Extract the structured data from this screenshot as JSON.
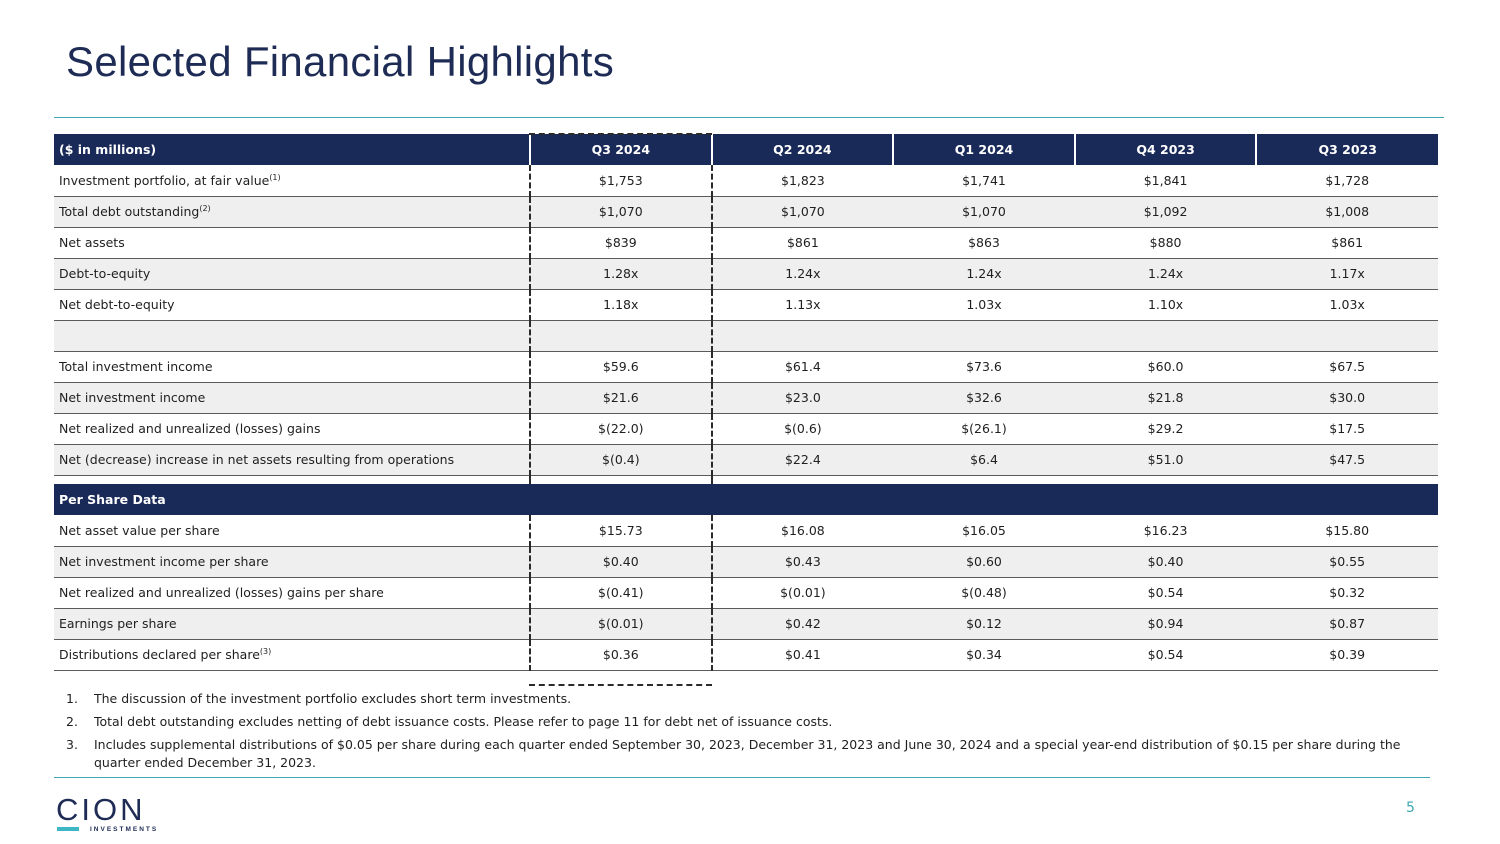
{
  "title": "Selected Financial Highlights",
  "table": {
    "header_label": "($ in millions)",
    "columns": [
      "Q3 2024",
      "Q2 2024",
      "Q1 2024",
      "Q4 2023",
      "Q3 2023"
    ],
    "rows_a": [
      {
        "label": "Investment portfolio, at fair value",
        "sup": "(1)",
        "values": [
          "$1,753",
          "$1,823",
          "$1,741",
          "$1,841",
          "$1,728"
        ]
      },
      {
        "label": "Total debt outstanding",
        "sup": "(2)",
        "values": [
          "$1,070",
          "$1,070",
          "$1,070",
          "$1,092",
          "$1,008"
        ]
      },
      {
        "label": "Net assets",
        "sup": "",
        "values": [
          "$839",
          "$861",
          "$863",
          "$880",
          "$861"
        ]
      },
      {
        "label": "Debt-to-equity",
        "sup": "",
        "values": [
          "1.28x",
          "1.24x",
          "1.24x",
          "1.24x",
          "1.17x"
        ]
      },
      {
        "label": "Net debt-to-equity",
        "sup": "",
        "values": [
          "1.18x",
          "1.13x",
          "1.03x",
          "1.10x",
          "1.03x"
        ]
      }
    ],
    "rows_b": [
      {
        "label": "Total investment income",
        "sup": "",
        "values": [
          "$59.6",
          "$61.4",
          "$73.6",
          "$60.0",
          "$67.5"
        ]
      },
      {
        "label": "Net investment income",
        "sup": "",
        "values": [
          "$21.6",
          "$23.0",
          "$32.6",
          "$21.8",
          "$30.0"
        ]
      },
      {
        "label": "Net realized and unrealized (losses) gains",
        "sup": "",
        "values": [
          "$(22.0)",
          "$(0.6)",
          "$(26.1)",
          "$29.2",
          "$17.5"
        ]
      },
      {
        "label": "Net (decrease) increase in net assets resulting from operations",
        "sup": "",
        "values": [
          "$(0.4)",
          "$22.4",
          "$6.4",
          "$51.0",
          "$47.5"
        ]
      }
    ],
    "per_share_heading": "Per Share Data",
    "rows_c": [
      {
        "label": "Net asset value per share",
        "sup": "",
        "values": [
          "$15.73",
          "$16.08",
          "$16.05",
          "$16.23",
          "$15.80"
        ]
      },
      {
        "label": "Net investment income per share",
        "sup": "",
        "values": [
          "$0.40",
          "$0.43",
          "$0.60",
          "$0.40",
          "$0.55"
        ]
      },
      {
        "label": "Net realized and unrealized (losses) gains per share",
        "sup": "",
        "values": [
          "$(0.41)",
          "$(0.01)",
          "$(0.48)",
          "$0.54",
          "$0.32"
        ]
      },
      {
        "label": "Earnings per share",
        "sup": "",
        "values": [
          "$(0.01)",
          "$0.42",
          "$0.12",
          "$0.94",
          "$0.87"
        ]
      },
      {
        "label": "Distributions declared per share",
        "sup": "(3)",
        "values": [
          "$0.36",
          "$0.41",
          "$0.34",
          "$0.54",
          "$0.39"
        ]
      }
    ]
  },
  "footnotes": [
    {
      "num": "1.",
      "text": "The discussion of the investment portfolio excludes short term investments."
    },
    {
      "num": "2.",
      "text": "Total debt outstanding excludes netting of debt issuance costs. Please refer to page 11 for debt net of issuance costs."
    },
    {
      "num": "3.",
      "text": "Includes supplemental distributions of $0.05 per share during each quarter ended September 30, 2023, December 31, 2023 and June 30, 2024 and a special year-end distribution of $0.15 per share during the quarter ended December 31, 2023."
    }
  ],
  "logo": {
    "mark": "CION",
    "sub": "INVESTMENTS"
  },
  "page_number": "5",
  "colors": {
    "navy": "#1a2a58",
    "accent": "#3fa7b2",
    "row_alt": "#efefef"
  }
}
